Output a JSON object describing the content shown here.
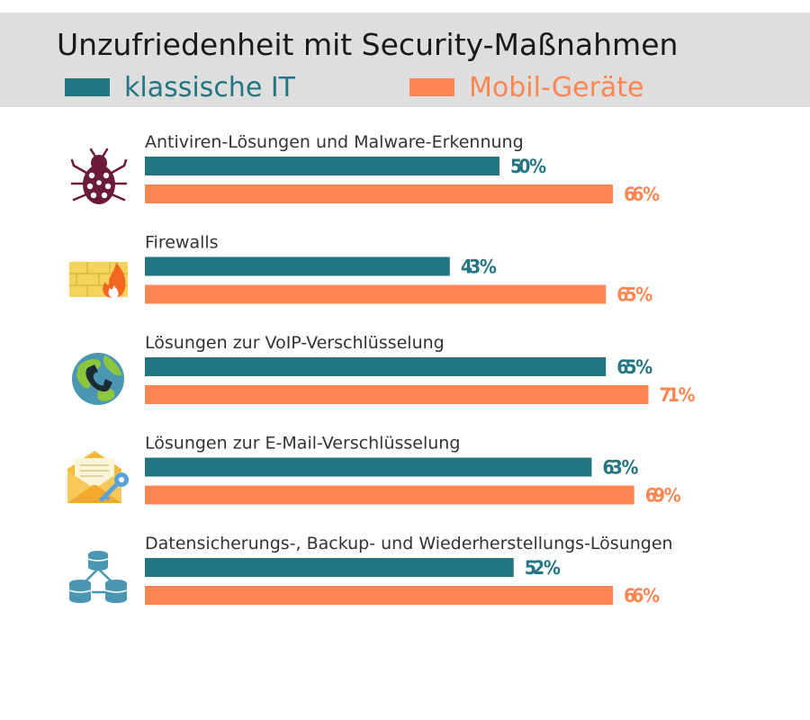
{
  "colors": {
    "it": "#237584",
    "mobile": "#fd8652",
    "header_bg": "#dedede"
  },
  "chart_data": {
    "type": "bar",
    "orientation": "horizontal",
    "title": "Unzufriedenheit mit Security-Maßnahmen",
    "value_suffix": " %",
    "xlim": [
      0,
      100
    ],
    "categories": [
      "Antiviren-Lösungen und Malware-Erkennung",
      "Firewalls",
      "Lösungen zur VoIP-Verschlüsselung",
      "Lösungen zur E-Mail-Verschlüsselung",
      "Datensicherungs-, Backup- und Wiederherstellungs-Lösungen"
    ],
    "icons": [
      "ladybug-icon",
      "firewall-icon",
      "globe-phone-icon",
      "envelope-key-icon",
      "network-storage-icon"
    ],
    "series": [
      {
        "name": "klassische IT",
        "values": [
          50,
          43,
          65,
          63,
          52
        ]
      },
      {
        "name": "Mobil-Geräte",
        "values": [
          66,
          65,
          71,
          69,
          66
        ]
      }
    ]
  }
}
